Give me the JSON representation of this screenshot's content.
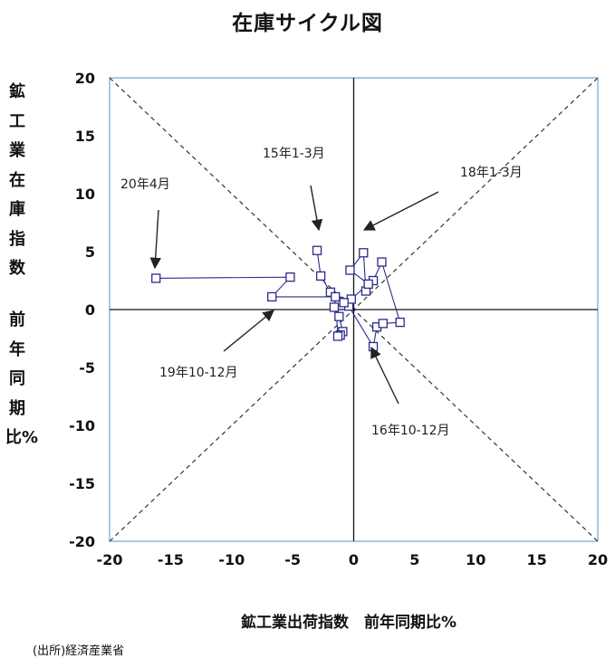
{
  "chart_data": {
    "type": "scatter",
    "title": "在庫サイクル図",
    "xlabel": "鉱工業出荷指数　前年同期比%",
    "ylabel_top": "鉱工業在庫指数",
    "ylabel_bottom": "前年同期比%",
    "xlim": [
      -20,
      20
    ],
    "ylim": [
      -20,
      20
    ],
    "x_ticks": [
      -20,
      -15,
      -10,
      -5,
      0,
      5,
      10,
      15,
      20
    ],
    "y_ticks": [
      -20,
      -15,
      -10,
      -5,
      0,
      5,
      10,
      15,
      20
    ],
    "grid": false,
    "reference_lines": [
      "y = x",
      "y = -x"
    ],
    "series": [
      {
        "points": [
          {
            "x": -3.0,
            "y": 5.1
          },
          {
            "x": -2.7,
            "y": 2.9
          },
          {
            "x": -1.9,
            "y": 1.5
          },
          {
            "x": -1.2,
            "y": 0.7
          },
          {
            "x": -0.4,
            "y": 0.3
          },
          {
            "x": 1.6,
            "y": -3.2
          },
          {
            "x": 1.9,
            "y": -1.5
          },
          {
            "x": 2.4,
            "y": -1.2
          },
          {
            "x": 3.8,
            "y": -1.1
          },
          {
            "x": 2.3,
            "y": 4.1
          },
          {
            "x": 1.6,
            "y": 2.5
          },
          {
            "x": 1.0,
            "y": 1.6
          },
          {
            "x": 0.8,
            "y": 4.9
          },
          {
            "x": -0.3,
            "y": 3.4
          },
          {
            "x": 1.2,
            "y": 2.2
          },
          {
            "x": -0.2,
            "y": 0.9
          },
          {
            "x": -0.8,
            "y": 0.6
          },
          {
            "x": -1.6,
            "y": 0.2
          },
          {
            "x": -1.2,
            "y": -0.6
          },
          {
            "x": -0.9,
            "y": -1.9
          },
          {
            "x": -1.1,
            "y": -2.2
          },
          {
            "x": -1.3,
            "y": -2.3
          },
          {
            "x": -1.5,
            "y": 1.1
          },
          {
            "x": -6.7,
            "y": 1.1
          },
          {
            "x": -5.2,
            "y": 2.8
          },
          {
            "x": -16.2,
            "y": 2.7
          }
        ]
      }
    ],
    "annotations": [
      {
        "label": "15年1-3月",
        "x": -3.0,
        "y": 5.1
      },
      {
        "label": "18年1-3月",
        "x": 0.8,
        "y": 4.9
      },
      {
        "label": "20年4月",
        "x": -16.2,
        "y": 2.7
      },
      {
        "label": "19年10-12月",
        "x": -6.7,
        "y": 1.1
      },
      {
        "label": "16年10-12月",
        "x": 1.6,
        "y": -3.2
      }
    ],
    "source": "(出所)経済産業省"
  },
  "colors": {
    "series": "#2a2a8c",
    "frame": "#6aa6d6",
    "axes": "#111111",
    "diagonals": "#333333"
  }
}
